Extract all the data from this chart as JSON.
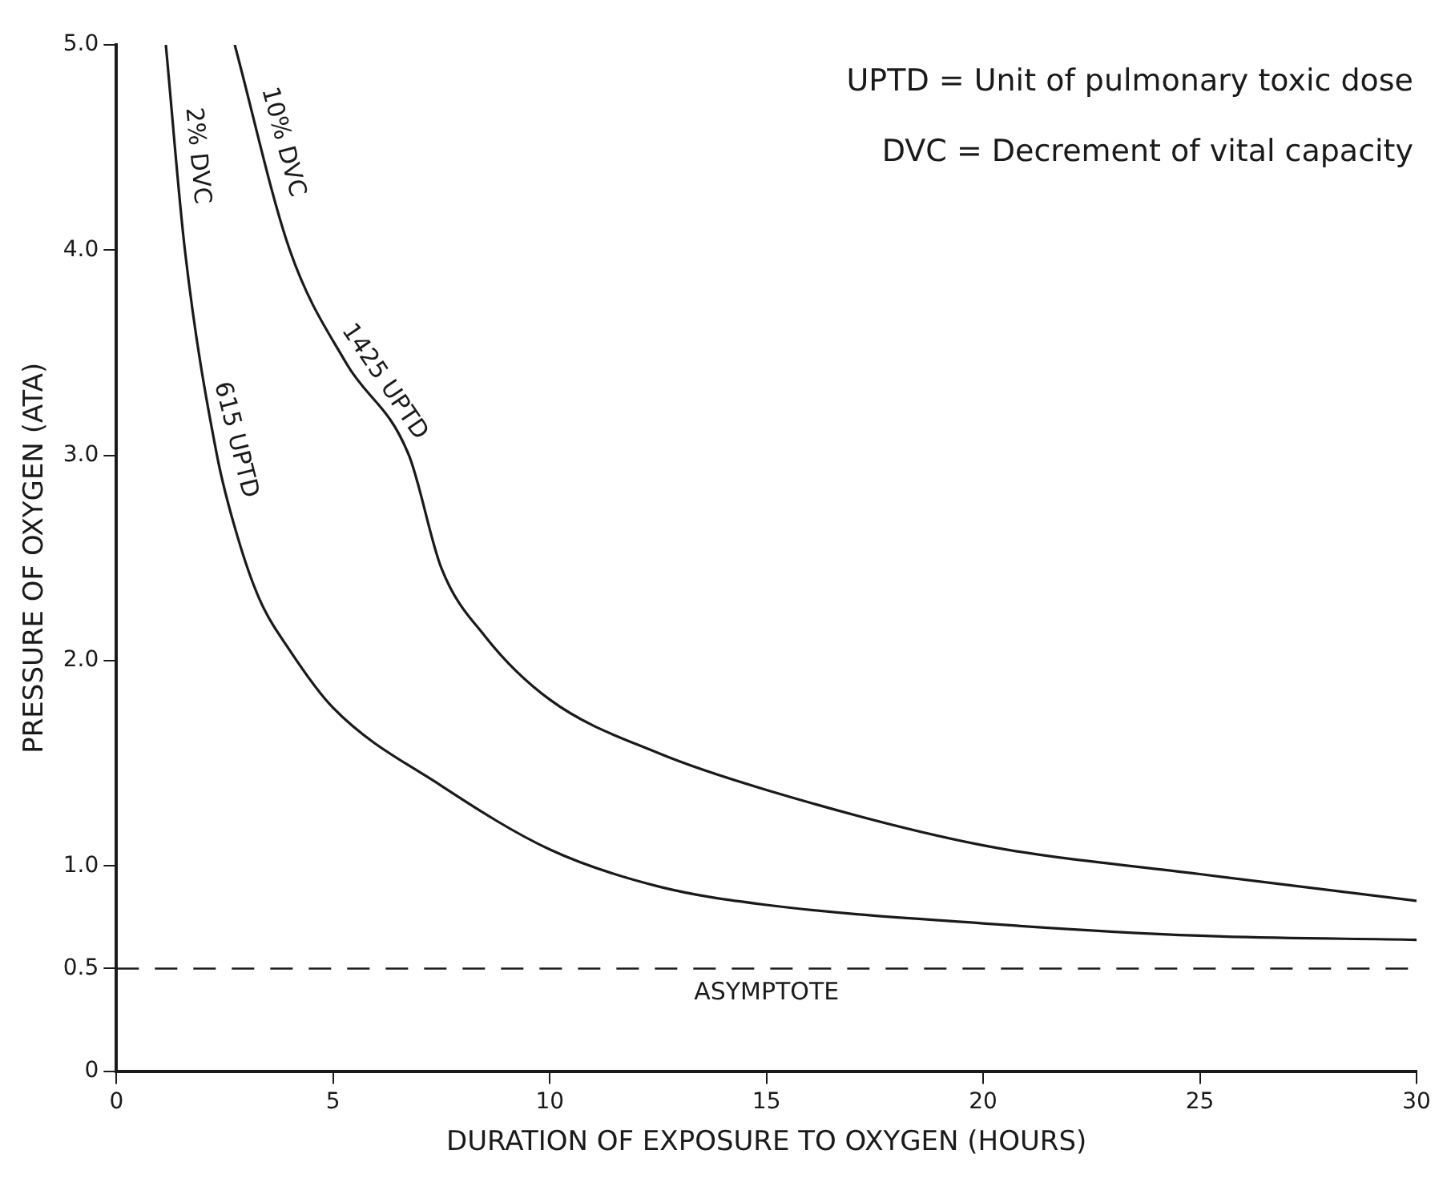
{
  "chart_data": {
    "type": "line",
    "xlabel": "DURATION OF EXPOSURE TO OXYGEN (HOURS)",
    "ylabel": "PRESSURE OF OXYGEN (ATA)",
    "xlim": [
      0,
      30
    ],
    "xticks": [
      0,
      5,
      10,
      15,
      20,
      25,
      30
    ],
    "ylim": [
      0,
      5
    ],
    "yticks": [
      0,
      0.5,
      {
        "value": 1,
        "label": "1.0"
      },
      {
        "value": 2,
        "label": "2.0"
      },
      {
        "value": 3,
        "label": "3.0"
      },
      {
        "value": 4,
        "label": "4.0"
      },
      {
        "value": 5,
        "label": "5.0"
      }
    ],
    "series": [
      {
        "color": "#1a1a1a",
        "x": [
          1.14,
          1.58,
          2.32,
          2.8,
          3.3,
          4.0,
          5,
          7.5,
          10,
          12.5,
          15,
          20,
          25,
          30
        ],
        "values": [
          5.0,
          4.0,
          3.0,
          2.6,
          2.3,
          2.05,
          1.77,
          1.39,
          1.08,
          0.9,
          0.81,
          0.72,
          0.66,
          0.64
        ]
      },
      {
        "color": "#1a1a1a",
        "x": [
          2.73,
          4.0,
          5.3,
          6.75,
          7.5,
          8.5,
          10,
          12.5,
          15,
          20,
          25,
          30
        ],
        "values": [
          5.0,
          4.0,
          3.45,
          3.0,
          2.45,
          2.12,
          1.81,
          1.55,
          1.37,
          1.1,
          0.96,
          0.83
        ]
      }
    ],
    "ref_lines": [
      {
        "axis": "y",
        "value": 0.5,
        "label": "ASYMPTOTE",
        "line_style": "dashed",
        "color": "#1a1a1a"
      }
    ],
    "annotations": [
      {
        "text": "2% DVC",
        "x": 1.38,
        "y": 4.45
      },
      {
        "text": "615 UPTD",
        "x": 2.28,
        "y": 3.05
      },
      {
        "text": "10% DVC",
        "x": 3.37,
        "y": 4.5
      },
      {
        "text": "1425 UPTD",
        "x": 5.78,
        "y": 3.3
      },
      "UPTD = Unit of pulmonary toxic dose",
      "DVC = Decrement of vital capacity"
    ],
    "grid": false,
    "legend": false,
    "marker": "none",
    "line_style": "solid"
  }
}
